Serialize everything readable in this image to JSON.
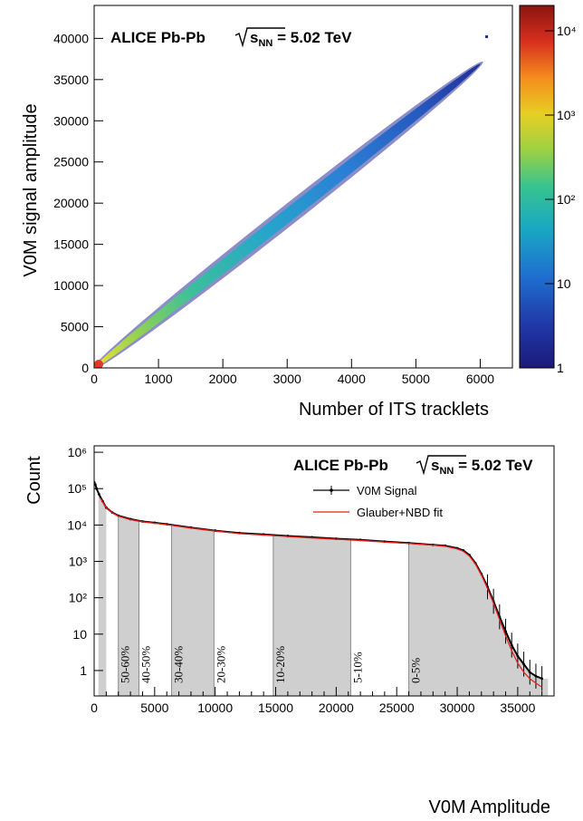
{
  "chart_data": [
    {
      "type": "heatmap",
      "title": "ALICE Pb-Pb",
      "energy_label": {
        "prefix": "s",
        "subscript": "NN",
        "value": " = 5.02 TeV"
      },
      "xlabel": "Number of ITS tracklets",
      "ylabel": "V0M signal amplitude",
      "xlim": [
        0,
        6500
      ],
      "ylim": [
        0,
        44000
      ],
      "xticks": [
        0,
        1000,
        2000,
        3000,
        4000,
        5000,
        6000
      ],
      "yticks": [
        0,
        5000,
        10000,
        15000,
        20000,
        25000,
        30000,
        35000,
        40000
      ],
      "zscale": "log",
      "zlim": [
        1,
        20000
      ],
      "zticks": [
        {
          "value": 1,
          "label": "1"
        },
        {
          "value": 10,
          "label": "10"
        },
        {
          "value": 100,
          "label": "10²"
        },
        {
          "value": 1000,
          "label": "10³"
        },
        {
          "value": 10000,
          "label": "10⁴"
        }
      ],
      "correlation": {
        "slope": 6.15,
        "max_x": 6000,
        "outlier": [
          6100,
          40200
        ]
      }
    },
    {
      "type": "line",
      "title": "ALICE Pb-Pb",
      "energy_label": {
        "prefix": "s",
        "subscript": "NN",
        "value": " = 5.02 TeV"
      },
      "xlabel": "V0M Amplitude",
      "ylabel": "Count",
      "xlim": [
        0,
        38000
      ],
      "ylim": [
        0.2,
        1500000
      ],
      "yscale": "log",
      "xticks": [
        0,
        5000,
        10000,
        15000,
        20000,
        25000,
        30000,
        35000
      ],
      "yticks": [
        {
          "value": 1,
          "label": "1"
        },
        {
          "value": 10,
          "label": "10"
        },
        {
          "value": 100,
          "label": "10²"
        },
        {
          "value": 1000,
          "label": "10³"
        },
        {
          "value": 10000,
          "label": "10⁴"
        },
        {
          "value": 100000,
          "label": "10⁵"
        },
        {
          "value": 1000000,
          "label": "10⁶"
        }
      ],
      "series": [
        {
          "name": "V0M Signal",
          "color": "#000000",
          "x": [
            0,
            100,
            200,
            400,
            700,
            1000,
            1500,
            2000,
            3000,
            4000,
            5000,
            6000,
            8000,
            10000,
            12000,
            14000,
            16000,
            18000,
            20000,
            22000,
            24000,
            26000,
            28000,
            29000,
            30000,
            30500,
            31000,
            31500,
            32000,
            32500,
            33000,
            33500,
            34000,
            34500,
            35000,
            35500,
            36000,
            36500,
            37000
          ],
          "y": [
            150000,
            130000,
            100000,
            70000,
            45000,
            30000,
            22000,
            18000,
            14500,
            12500,
            11500,
            10500,
            8500,
            7000,
            6000,
            5500,
            5000,
            4600,
            4200,
            3900,
            3500,
            3200,
            2850,
            2700,
            2300,
            2000,
            1500,
            900,
            450,
            200,
            80,
            30,
            12,
            5,
            2.5,
            1.5,
            0.9,
            0.7,
            0.6
          ]
        },
        {
          "name": "Glauber+NBD fit",
          "color": "#e8211a",
          "x": [
            500,
            1000,
            1500,
            2000,
            3000,
            4000,
            5000,
            6000,
            8000,
            10000,
            12000,
            14000,
            16000,
            18000,
            20000,
            22000,
            24000,
            26000,
            28000,
            29000,
            30000,
            30500,
            31000,
            31500,
            32000,
            32500,
            33000,
            33500,
            34000,
            34500,
            35000,
            35500,
            36000,
            36500,
            37000
          ],
          "y": [
            55000,
            30000,
            21500,
            17500,
            14000,
            12200,
            11200,
            10200,
            8200,
            6800,
            5800,
            5300,
            4800,
            4400,
            4050,
            3750,
            3400,
            3100,
            2800,
            2600,
            2200,
            1900,
            1400,
            850,
            420,
            180,
            70,
            25,
            9,
            3.5,
            1.6,
            0.9,
            0.6,
            0.45,
            0.35
          ]
        }
      ],
      "centrality_classes": [
        {
          "label": "50-60%",
          "from": 2000,
          "to": 3700,
          "shaded": true
        },
        {
          "label": "40-50%",
          "from": 3700,
          "to": 6400,
          "shaded": false
        },
        {
          "label": "30-40%",
          "from": 6400,
          "to": 9900,
          "shaded": true
        },
        {
          "label": "20-30%",
          "from": 9900,
          "to": 14800,
          "shaded": false
        },
        {
          "label": "10-20%",
          "from": 14800,
          "to": 21200,
          "shaded": true
        },
        {
          "label": "5-10%",
          "from": 21200,
          "to": 26000,
          "shaded": false
        },
        {
          "label": "0-5%",
          "from": 26000,
          "to": 38000,
          "shaded": true
        }
      ],
      "extra_shading": [
        {
          "from": 350,
          "to": 1000
        }
      ],
      "colors": {
        "shading": "#cfcfcf",
        "divider": "#8c8c8c"
      }
    }
  ]
}
